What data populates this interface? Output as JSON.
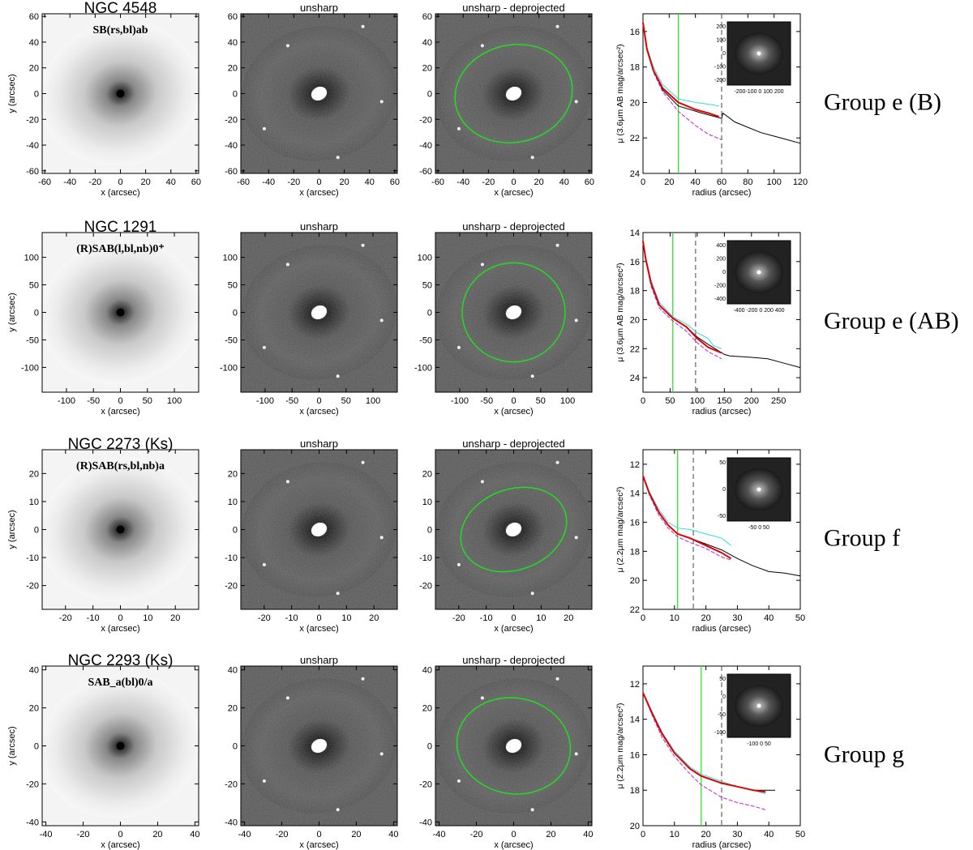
{
  "figure": {
    "col_title_unsharp": "unsharp",
    "col_title_deproj": "unsharp - deprojected",
    "xlabel_img": "x (arcsec)",
    "ylabel_img": "y (arcsec)",
    "xlabel_prof": "radius (arcsec)"
  },
  "rows": [
    {
      "galaxy": "NGC 4548",
      "morph": "SB(rs,bl)ab",
      "group": "Group e (B)",
      "img_ticks": [
        -60,
        -40,
        -20,
        0,
        20,
        40,
        60
      ],
      "img_lim": 62,
      "ellipse": {
        "rx": 26,
        "ry": 21,
        "angle": -12
      },
      "profile": {
        "ylabel": "μ (3.6μm AB mag/arcsec²)",
        "xlim": [
          0,
          120
        ],
        "xticks": [
          0,
          20,
          40,
          60,
          80,
          100,
          120
        ],
        "ylim": [
          24,
          15
        ],
        "yticks": [
          16,
          18,
          20,
          22,
          24
        ],
        "green_x": 27,
        "dashed_x": 60,
        "inset_ticks": "-200-100 0 100 200",
        "inset_yticks": [
          "200",
          "100",
          "0",
          "-100",
          "-200"
        ],
        "black": [
          [
            0,
            15.5
          ],
          [
            3,
            17
          ],
          [
            8,
            18.2
          ],
          [
            15,
            19.3
          ],
          [
            27,
            20.2
          ],
          [
            45,
            20.6
          ],
          [
            60,
            20.9
          ],
          [
            61,
            20.6
          ],
          [
            70,
            21.1
          ],
          [
            80,
            21.4
          ],
          [
            90,
            21.7
          ],
          [
            100,
            21.9
          ],
          [
            110,
            22.1
          ],
          [
            120,
            22.3
          ]
        ],
        "red": [
          [
            0,
            15.5
          ],
          [
            3,
            17
          ],
          [
            8,
            18.2
          ],
          [
            15,
            19.2
          ],
          [
            27,
            20.0
          ],
          [
            40,
            20.4
          ],
          [
            50,
            20.6
          ],
          [
            58,
            20.8
          ]
        ],
        "cyan": [
          [
            0,
            15.5
          ],
          [
            3,
            16.9
          ],
          [
            8,
            18.0
          ],
          [
            15,
            19.0
          ],
          [
            27,
            19.8
          ],
          [
            40,
            20.0
          ],
          [
            50,
            20.1
          ],
          [
            58,
            20.2
          ]
        ],
        "magenta": [
          [
            0,
            15.5
          ],
          [
            3,
            17
          ],
          [
            8,
            18.3
          ],
          [
            15,
            19.4
          ],
          [
            27,
            20.5
          ],
          [
            40,
            21.3
          ],
          [
            50,
            21.8
          ],
          [
            60,
            22.1
          ]
        ]
      }
    },
    {
      "galaxy": "NGC 1291",
      "morph": "(R)SAB(l,bl,nb)0⁺",
      "group": "Group e (AB)",
      "img_ticks": [
        -100,
        -50,
        0,
        50,
        100
      ],
      "img_lim": 145,
      "ellipse": {
        "rx": 53,
        "ry": 50,
        "angle": 0
      },
      "profile": {
        "ylabel": "μ (3.6μm AB mag/arcsec²)",
        "xlim": [
          0,
          290
        ],
        "xticks": [
          0,
          50,
          100,
          150,
          200,
          250
        ],
        "ylim": [
          25,
          14
        ],
        "yticks": [
          14,
          16,
          18,
          20,
          22,
          24
        ],
        "green_x": 55,
        "dashed_x": 97,
        "inset_ticks": "-400 -200 0 200 400",
        "inset_yticks": [
          "400",
          "200",
          "0",
          "-200",
          "-400"
        ],
        "black": [
          [
            0,
            14.6
          ],
          [
            5,
            15.8
          ],
          [
            15,
            17.5
          ],
          [
            30,
            19.0
          ],
          [
            55,
            19.9
          ],
          [
            80,
            20.5
          ],
          [
            100,
            21.2
          ],
          [
            120,
            21.7
          ],
          [
            150,
            22.4
          ],
          [
            160,
            22.5
          ],
          [
            200,
            22.6
          ],
          [
            230,
            22.7
          ],
          [
            260,
            23.0
          ],
          [
            290,
            23.3
          ]
        ],
        "red": [
          [
            0,
            14.6
          ],
          [
            5,
            15.8
          ],
          [
            15,
            17.5
          ],
          [
            30,
            19.0
          ],
          [
            55,
            19.9
          ],
          [
            80,
            20.5
          ],
          [
            100,
            21.3
          ],
          [
            120,
            21.9
          ],
          [
            145,
            22.3
          ]
        ],
        "cyan": [
          [
            0,
            14.6
          ],
          [
            5,
            15.7
          ],
          [
            15,
            17.3
          ],
          [
            30,
            18.8
          ],
          [
            55,
            19.8
          ],
          [
            80,
            20.3
          ],
          [
            100,
            20.9
          ],
          [
            120,
            21.3
          ],
          [
            130,
            21.8
          ],
          [
            145,
            22.0
          ]
        ],
        "magenta": [
          [
            0,
            14.6
          ],
          [
            5,
            15.9
          ],
          [
            15,
            17.7
          ],
          [
            30,
            19.2
          ],
          [
            55,
            20.1
          ],
          [
            80,
            20.8
          ],
          [
            100,
            21.6
          ],
          [
            120,
            22.2
          ],
          [
            145,
            22.7
          ]
        ]
      }
    },
    {
      "galaxy": "NGC 2273   (Ks)",
      "morph": "(R)SAB(rs,bl,nb)a",
      "group": "Group f",
      "img_ticks": [
        -20,
        -10,
        0,
        10,
        20
      ],
      "img_lim": 28.5,
      "ellipse": {
        "rx": 11,
        "ry": 8,
        "angle": -20
      },
      "profile": {
        "ylabel": "μ (2.2μm mag/arcsec²)",
        "xlim": [
          0,
          50
        ],
        "xticks": [
          0,
          10,
          20,
          30,
          40,
          50
        ],
        "ylim": [
          22,
          11
        ],
        "yticks": [
          12,
          14,
          16,
          18,
          20,
          22
        ],
        "green_x": 11,
        "dashed_x": 16,
        "inset_ticks": "-50 0 50",
        "inset_yticks": [
          "50",
          "0",
          "-50"
        ],
        "black": [
          [
            0,
            12.8
          ],
          [
            2,
            14.0
          ],
          [
            5,
            15.3
          ],
          [
            8,
            16.2
          ],
          [
            11,
            16.8
          ],
          [
            15,
            17.1
          ],
          [
            20,
            17.5
          ],
          [
            25,
            17.9
          ],
          [
            30,
            18.5
          ],
          [
            35,
            19.0
          ],
          [
            40,
            19.4
          ],
          [
            45,
            19.5
          ],
          [
            50,
            19.7
          ]
        ],
        "red": [
          [
            0,
            12.8
          ],
          [
            2,
            14.0
          ],
          [
            5,
            15.3
          ],
          [
            8,
            16.2
          ],
          [
            11,
            16.8
          ],
          [
            15,
            17.1
          ],
          [
            20,
            17.6
          ],
          [
            25,
            18.1
          ],
          [
            28,
            18.5
          ]
        ],
        "cyan": [
          [
            0,
            12.8
          ],
          [
            2,
            13.9
          ],
          [
            5,
            15.1
          ],
          [
            8,
            16.0
          ],
          [
            11,
            16.4
          ],
          [
            15,
            16.5
          ],
          [
            20,
            16.8
          ],
          [
            25,
            17.1
          ],
          [
            28,
            17.6
          ]
        ],
        "magenta": [
          [
            0,
            12.8
          ],
          [
            2,
            14.1
          ],
          [
            5,
            15.5
          ],
          [
            8,
            16.4
          ],
          [
            11,
            17.0
          ],
          [
            15,
            17.4
          ],
          [
            20,
            17.8
          ],
          [
            25,
            18.4
          ],
          [
            28,
            18.6
          ]
        ]
      }
    },
    {
      "galaxy": "NGC 2293   (Ks)",
      "morph": "SAB_a(bl)0/a",
      "group": "Group g",
      "img_ticks": [
        -40,
        -20,
        0,
        20,
        40
      ],
      "img_lim": 42,
      "ellipse": {
        "rx": 17,
        "ry": 14,
        "angle": 10
      },
      "profile": {
        "ylabel": "μ (2.2μm mag/arcsec²)",
        "xlim": [
          0,
          50
        ],
        "xticks": [
          0,
          10,
          20,
          30,
          40,
          50
        ],
        "ylim": [
          20,
          11
        ],
        "yticks": [
          12,
          14,
          16,
          18,
          20
        ],
        "green_x": 18.5,
        "dashed_x": 25,
        "inset_ticks": "-100  0  50",
        "inset_yticks": [
          "50",
          "0",
          "-50",
          "-100"
        ],
        "black": [
          [
            0,
            12.5
          ],
          [
            3,
            13.7
          ],
          [
            6,
            14.8
          ],
          [
            10,
            15.9
          ],
          [
            15,
            16.8
          ],
          [
            18.5,
            17.2
          ],
          [
            25,
            17.6
          ],
          [
            30,
            17.8
          ],
          [
            35,
            18.0
          ],
          [
            40,
            18.0
          ],
          [
            42,
            18.0
          ]
        ],
        "red": [
          [
            0,
            12.5
          ],
          [
            3,
            13.7
          ],
          [
            6,
            14.8
          ],
          [
            10,
            15.9
          ],
          [
            15,
            16.8
          ],
          [
            18.5,
            17.2
          ],
          [
            25,
            17.6
          ],
          [
            30,
            17.8
          ],
          [
            35,
            18.0
          ],
          [
            39,
            18.1
          ]
        ],
        "cyan": [
          [
            0,
            12.5
          ],
          [
            3,
            13.6
          ],
          [
            6,
            14.7
          ],
          [
            10,
            15.8
          ],
          [
            15,
            16.7
          ],
          [
            18.5,
            17.1
          ],
          [
            25,
            17.5
          ],
          [
            30,
            17.8
          ],
          [
            35,
            18.0
          ],
          [
            39,
            18.2
          ]
        ],
        "magenta": [
          [
            0,
            12.5
          ],
          [
            3,
            13.8
          ],
          [
            6,
            15.0
          ],
          [
            10,
            16.1
          ],
          [
            15,
            17.1
          ],
          [
            18.5,
            17.7
          ],
          [
            25,
            18.4
          ],
          [
            30,
            18.7
          ],
          [
            35,
            18.9
          ],
          [
            39,
            19.1
          ]
        ]
      }
    }
  ],
  "colors": {
    "green": "#22dd22",
    "red": "#e00000",
    "cyan": "#33dddd",
    "magenta": "#cc22cc"
  }
}
